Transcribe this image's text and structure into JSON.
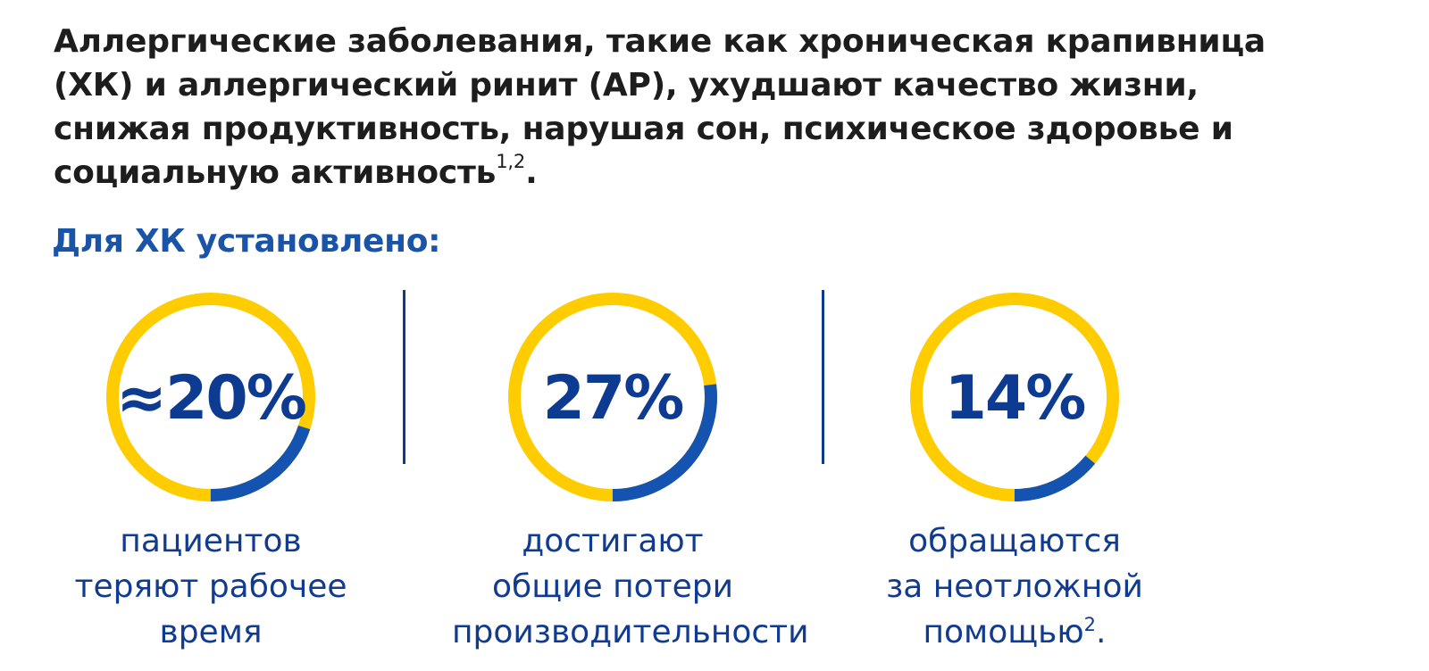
{
  "intro": {
    "text": "Аллергические заболевания, такие как хроническая крапивница (ХК) и аллергический ринит (АР), ухудшают качество жизни, снижая продуктивность, нарушая сон, психическое здоровье и социальную активность",
    "refs": "1,2",
    "end": "."
  },
  "subheading": "Для ХК установлено:",
  "colors": {
    "ring_main": "#ffcc00",
    "ring_accent": "#1553b0",
    "value_text": "#0e3b92",
    "subheading": "#1a54a8"
  },
  "stats": [
    {
      "value": "≈20%",
      "fraction": 0.2,
      "caption_lines": [
        "пациентов",
        "теряют рабочее",
        "время"
      ],
      "ref": ""
    },
    {
      "value": "27%",
      "fraction": 0.27,
      "caption_lines": [
        "достигают",
        "общие потери",
        "производительности"
      ],
      "ref": ""
    },
    {
      "value": "14%",
      "fraction": 0.14,
      "caption_lines": [
        "обращаются",
        "за неотложной",
        "помощью"
      ],
      "ref": "2",
      "end": "."
    }
  ]
}
